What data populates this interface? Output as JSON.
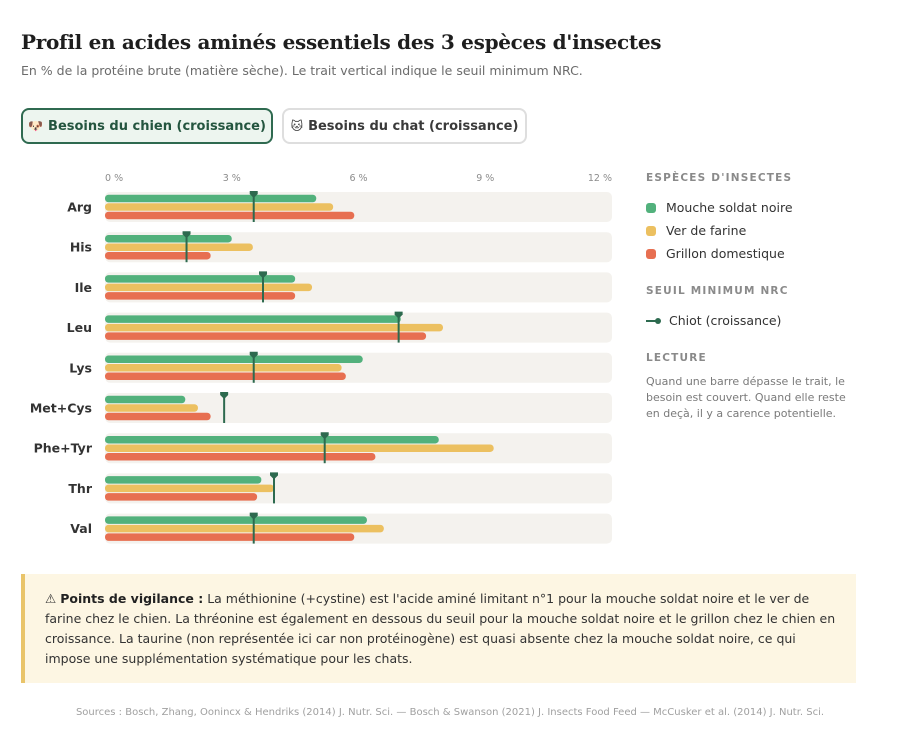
{
  "title": "Profil en acides aminés essentiels des 3 espèces d'insectes",
  "subtitle": "En % de la protéine brute (matière sèche). Le trait vertical indique le seuil minimum NRC.",
  "toggle": {
    "dog": {
      "emoji": "🐶",
      "label": "Besoins du chien (croissance)"
    },
    "cat": {
      "emoji": "🐱",
      "label": "Besoins du chat (croissance)"
    }
  },
  "legend": {
    "species_heading": "ESPÈCES D'INSECTES",
    "species": [
      {
        "name": "Mouche soldat noire",
        "color": "#52b17c"
      },
      {
        "name": "Ver de farine",
        "color": "#ecc060"
      },
      {
        "name": "Grillon domestique",
        "color": "#e76f51"
      }
    ],
    "threshold_heading": "SEUIL MINIMUM NRC",
    "threshold_label": "Chiot (croissance)",
    "threshold_color": "#2d6a4f",
    "reading_heading": "LECTURE",
    "reading_text": "Quand une barre dépasse le trait, le besoin est couvert. Quand elle reste en deçà, il y a carence potentielle."
  },
  "note": {
    "icon": "⚠",
    "label": "Points de vigilance :",
    "text": "La méthionine (+cystine) est l'acide aminé limitant n°1 pour la mouche soldat noire et le ver de farine chez le chien. La thréonine est également en dessous du seuil pour la mouche soldat noire et le grillon chez le chien en croissance. La taurine (non représentée ici car non protéinogène) est quasi absente chez la mouche soldat noire, ce qui impose une supplémentation systématique pour les chats."
  },
  "sources": "Sources : Bosch, Zhang, Oonincx & Hendriks (2014) J. Nutr. Sci. — Bosch & Swanson (2021) J. Insects Food Feed — McCusker et al. (2014) J. Nutr. Sci.",
  "chart_data": {
    "type": "bar",
    "orientation": "horizontal",
    "xlim": [
      0,
      12
    ],
    "ticks": [
      0,
      3,
      6,
      9,
      12
    ],
    "tick_labels": [
      "0 %",
      "3 %",
      "6 %",
      "9 %",
      "12 %"
    ],
    "categories": [
      "Arg",
      "His",
      "Ile",
      "Leu",
      "Lys",
      "Met+Cys",
      "Phe+Tyr",
      "Thr",
      "Val"
    ],
    "series": [
      {
        "name": "Mouche soldat noire",
        "color": "#52b17c",
        "values": [
          5.0,
          3.0,
          4.5,
          7.0,
          6.1,
          1.9,
          7.9,
          3.7,
          6.2
        ]
      },
      {
        "name": "Ver de farine",
        "color": "#ecc060",
        "values": [
          5.4,
          3.5,
          4.9,
          8.0,
          5.6,
          2.2,
          9.2,
          4.0,
          6.6
        ]
      },
      {
        "name": "Grillon domestique",
        "color": "#e76f51",
        "values": [
          5.9,
          2.5,
          4.5,
          7.6,
          5.7,
          2.5,
          6.4,
          3.6,
          5.9
        ]
      }
    ],
    "threshold": {
      "name": "Chiot (croissance)",
      "color": "#2d6a4f",
      "values": [
        3.52,
        1.93,
        3.74,
        6.95,
        3.52,
        2.82,
        5.2,
        4.0,
        3.52
      ]
    }
  }
}
